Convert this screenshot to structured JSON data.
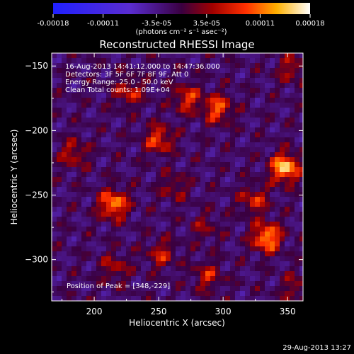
{
  "colorbar": {
    "ticks": [
      "-0.00018",
      "-0.00011",
      "-3.5e-05",
      "3.5e-05",
      "0.00011",
      "0.00018"
    ],
    "tick_values": [
      -0.00018,
      -0.00011,
      -3.5e-05,
      3.5e-05,
      0.00011,
      0.00018
    ],
    "range": [
      -0.00018,
      0.00018
    ],
    "units_label": "(photons cm⁻² s⁻¹ asec⁻²)"
  },
  "chart_data": {
    "type": "heatmap",
    "title": "Reconstructed RHESSI Image",
    "xlabel": "Heliocentric X (arcsec)",
    "ylabel": "Heliocentric Y (arcsec)",
    "xlim": [
      167,
      362
    ],
    "ylim": [
      -332,
      -140
    ],
    "xticks": [
      200,
      250,
      300,
      350
    ],
    "yticks": [
      -150,
      -200,
      -250,
      -300
    ],
    "annotations": [
      "16-Aug-2013 14:41:12.000 to 14:47:36.000",
      "Detectors: 3F 5F 6F 7F 8F 9F, Att 0",
      "Energy Range: 25.0 - 50.0 keV",
      "Clean     Total counts: 1.09E+04"
    ],
    "peak_label": "Position of Peak = [348,-229]",
    "peak": [
      348,
      -229
    ],
    "sources": [
      {
        "x": 348,
        "y": -229,
        "value": 0.00018
      },
      {
        "x": 334,
        "y": -283,
        "value": 0.00016
      },
      {
        "x": 215,
        "y": -257,
        "value": 0.00015
      },
      {
        "x": 250,
        "y": -207,
        "value": 0.00011
      },
      {
        "x": 296,
        "y": -183,
        "value": 0.00012
      },
      {
        "x": 272,
        "y": -175,
        "value": 0.0001
      },
      {
        "x": 227,
        "y": -170,
        "value": 9e-05
      },
      {
        "x": 184,
        "y": -218,
        "value": 8e-05
      },
      {
        "x": 252,
        "y": -296,
        "value": 8e-05
      },
      {
        "x": 216,
        "y": -306,
        "value": 7e-05
      },
      {
        "x": 288,
        "y": -313,
        "value": 8e-05
      },
      {
        "x": 353,
        "y": -152,
        "value": 7e-05
      },
      {
        "x": 356,
        "y": -322,
        "value": 6e-05
      },
      {
        "x": 324,
        "y": -254,
        "value": 9e-05
      },
      {
        "x": 286,
        "y": -275,
        "value": 5e-05
      },
      {
        "x": 262,
        "y": -244,
        "value": 6e-05
      }
    ],
    "grid": false,
    "colormap": "blue-purple-red-yellow-white"
  },
  "footer": {
    "timestamp": "29-Aug-2013 13:27"
  }
}
